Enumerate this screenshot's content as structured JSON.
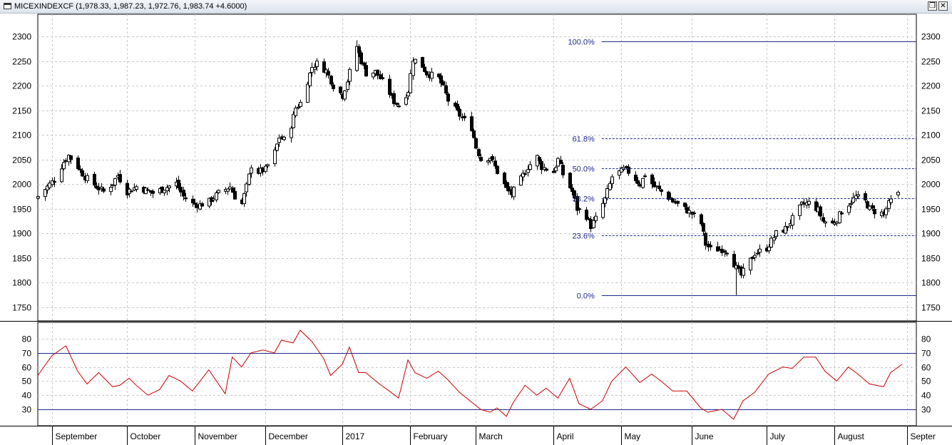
{
  "window": {
    "title": "MICEXINDEXCF (1,978.33, 1,987.23, 1,972.76, 1,983.74 +4.6000)",
    "restore_glyph": "❐",
    "close_glyph": "✕"
  },
  "colors": {
    "grid": "#c8c8c8",
    "candle_up_fill": "#ffffff",
    "candle_down_fill": "#000000",
    "candle_stroke": "#000000",
    "fib_line": "#1e2a8a",
    "rsi_line": "#cc0000",
    "rsi_levels": "#1e2a8a"
  },
  "chart_data": [
    {
      "type": "candlestick",
      "title": "MICEXINDEXCF",
      "last": {
        "open": 1978.33,
        "high": 1987.23,
        "low": 1972.76,
        "close": 1983.74,
        "change": 4.6
      },
      "x_start": "2016-08-26",
      "x_end": "2017-09-05",
      "ylim": [
        1710,
        2330
      ],
      "y_ticks": [
        1750,
        1800,
        1850,
        1900,
        1950,
        2000,
        2050,
        2100,
        2150,
        2200,
        2250,
        2300
      ],
      "grid": true,
      "x_labels": [
        {
          "label": "September",
          "date": "2016-09-01"
        },
        {
          "label": "October",
          "date": "2016-10-03"
        },
        {
          "label": "November",
          "date": "2016-11-01"
        },
        {
          "label": "December",
          "date": "2016-12-01"
        },
        {
          "label": "2017",
          "date": "2017-01-03"
        },
        {
          "label": "February",
          "date": "2017-02-01"
        },
        {
          "label": "March",
          "date": "2017-03-01"
        },
        {
          "label": "April",
          "date": "2017-04-03"
        },
        {
          "label": "May",
          "date": "2017-05-02"
        },
        {
          "label": "June",
          "date": "2017-06-01"
        },
        {
          "label": "July",
          "date": "2017-07-03"
        },
        {
          "label": "August",
          "date": "2017-08-01"
        },
        {
          "label": "Septer",
          "date": "2017-09-01"
        }
      ],
      "close_path": [
        [
          "2016-08-26",
          1975
        ],
        [
          "2016-09-02",
          2010
        ],
        [
          "2016-09-06",
          2045
        ],
        [
          "2016-09-08",
          2058
        ],
        [
          "2016-09-12",
          2035
        ],
        [
          "2016-09-15",
          2015
        ],
        [
          "2016-09-20",
          1995
        ],
        [
          "2016-09-23",
          1985
        ],
        [
          "2016-09-27",
          2002
        ],
        [
          "2016-09-29",
          2018
        ],
        [
          "2016-10-03",
          1985
        ],
        [
          "2016-10-07",
          1995
        ],
        [
          "2016-10-11",
          1988
        ],
        [
          "2016-10-14",
          1982
        ],
        [
          "2016-10-19",
          1992
        ],
        [
          "2016-10-24",
          2002
        ],
        [
          "2016-10-27",
          1975
        ],
        [
          "2016-10-31",
          1960
        ],
        [
          "2016-11-03",
          1958
        ],
        [
          "2016-11-07",
          1965
        ],
        [
          "2016-11-11",
          1982
        ],
        [
          "2016-11-16",
          1995
        ],
        [
          "2016-11-18",
          1975
        ],
        [
          "2016-11-21",
          1960
        ],
        [
          "2016-11-23",
          1995
        ],
        [
          "2016-11-25",
          2038
        ],
        [
          "2016-11-28",
          2025
        ],
        [
          "2016-12-01",
          2030
        ],
        [
          "2016-12-05",
          2065
        ],
        [
          "2016-12-07",
          2095
        ],
        [
          "2016-12-09",
          2090
        ],
        [
          "2016-12-12",
          2120
        ],
        [
          "2016-12-14",
          2155
        ],
        [
          "2016-12-16",
          2165
        ],
        [
          "2016-12-19",
          2210
        ],
        [
          "2016-12-21",
          2238
        ],
        [
          "2016-12-23",
          2245
        ],
        [
          "2016-12-27",
          2230
        ],
        [
          "2016-12-30",
          2200
        ],
        [
          "2017-01-03",
          2180
        ],
        [
          "2017-01-05",
          2210
        ],
        [
          "2017-01-09",
          2280
        ],
        [
          "2017-01-11",
          2250
        ],
        [
          "2017-01-13",
          2225
        ],
        [
          "2017-01-17",
          2228
        ],
        [
          "2017-01-19",
          2215
        ],
        [
          "2017-01-23",
          2185
        ],
        [
          "2017-01-25",
          2168
        ],
        [
          "2017-01-27",
          2160
        ],
        [
          "2017-01-31",
          2190
        ],
        [
          "2017-02-02",
          2255
        ],
        [
          "2017-02-06",
          2240
        ],
        [
          "2017-02-08",
          2225
        ],
        [
          "2017-02-13",
          2215
        ],
        [
          "2017-02-15",
          2195
        ],
        [
          "2017-02-17",
          2170
        ],
        [
          "2017-02-22",
          2140
        ],
        [
          "2017-02-27",
          2115
        ],
        [
          "2017-03-01",
          2075
        ],
        [
          "2017-03-03",
          2050
        ],
        [
          "2017-03-07",
          2055
        ],
        [
          "2017-03-10",
          2025
        ],
        [
          "2017-03-14",
          1990
        ],
        [
          "2017-03-16",
          1980
        ],
        [
          "2017-03-20",
          2010
        ],
        [
          "2017-03-23",
          2035
        ],
        [
          "2017-03-27",
          2055
        ],
        [
          "2017-03-29",
          2035
        ],
        [
          "2017-04-03",
          2025
        ],
        [
          "2017-04-05",
          2050
        ],
        [
          "2017-04-07",
          2020
        ],
        [
          "2017-04-11",
          1985
        ],
        [
          "2017-04-13",
          1950
        ],
        [
          "2017-04-17",
          1935
        ],
        [
          "2017-04-19",
          1915
        ],
        [
          "2017-04-21",
          1930
        ],
        [
          "2017-04-25",
          1970
        ],
        [
          "2017-04-28",
          2015
        ],
        [
          "2017-05-03",
          2030
        ],
        [
          "2017-05-05",
          2025
        ],
        [
          "2017-05-10",
          2000
        ],
        [
          "2017-05-12",
          2020
        ],
        [
          "2017-05-16",
          1995
        ],
        [
          "2017-05-19",
          1985
        ],
        [
          "2017-05-24",
          1965
        ],
        [
          "2017-05-29",
          1950
        ],
        [
          "2017-06-01",
          1940
        ],
        [
          "2017-06-05",
          1920
        ],
        [
          "2017-06-07",
          1878
        ],
        [
          "2017-06-09",
          1868
        ],
        [
          "2017-06-14",
          1868
        ],
        [
          "2017-06-16",
          1865
        ],
        [
          "2017-06-20",
          1830
        ],
        [
          "2017-06-22",
          1815
        ],
        [
          "2017-06-26",
          1845
        ],
        [
          "2017-06-28",
          1860
        ],
        [
          "2017-07-03",
          1870
        ],
        [
          "2017-07-05",
          1885
        ],
        [
          "2017-07-07",
          1900
        ],
        [
          "2017-07-11",
          1910
        ],
        [
          "2017-07-14",
          1930
        ],
        [
          "2017-07-18",
          1958
        ],
        [
          "2017-07-21",
          1962
        ],
        [
          "2017-07-25",
          1948
        ],
        [
          "2017-07-27",
          1925
        ],
        [
          "2017-07-31",
          1920
        ],
        [
          "2017-08-02",
          1930
        ],
        [
          "2017-08-04",
          1945
        ],
        [
          "2017-08-08",
          1965
        ],
        [
          "2017-08-10",
          1975
        ],
        [
          "2017-08-14",
          1965
        ],
        [
          "2017-08-16",
          1950
        ],
        [
          "2017-08-18",
          1945
        ],
        [
          "2017-08-22",
          1940
        ],
        [
          "2017-08-24",
          1960
        ],
        [
          "2017-08-28",
          1984
        ]
      ],
      "fibonacci": {
        "start_date": "2017-04-10",
        "end_date": "2017-09-05",
        "levels": [
          {
            "label": "100.0%",
            "value": 2290,
            "style": "solid"
          },
          {
            "label": "61.8%",
            "value": 2093,
            "style": "dashed"
          },
          {
            "label": "50.0%",
            "value": 2032,
            "style": "dashed"
          },
          {
            "label": "38.2%",
            "value": 1972,
            "style": "dashed"
          },
          {
            "label": "23.6%",
            "value": 1896,
            "style": "dashed"
          },
          {
            "label": "0.0%",
            "value": 1775,
            "style": "solid"
          }
        ]
      }
    },
    {
      "type": "line",
      "title": "",
      "ylim": [
        22,
        90
      ],
      "y_ticks": [
        30,
        40,
        50,
        60,
        70,
        80
      ],
      "levels": [
        30,
        70
      ],
      "grid": true,
      "x": [
        "2016-08-26",
        "2016-09-01",
        "2016-09-07",
        "2016-09-12",
        "2016-09-16",
        "2016-09-21",
        "2016-09-27",
        "2016-09-30",
        "2016-10-04",
        "2016-10-07",
        "2016-10-12",
        "2016-10-17",
        "2016-10-21",
        "2016-10-26",
        "2016-10-31",
        "2016-11-07",
        "2016-11-14",
        "2016-11-17",
        "2016-11-21",
        "2016-11-25",
        "2016-11-30",
        "2016-12-05",
        "2016-12-08",
        "2016-12-13",
        "2016-12-16",
        "2016-12-21",
        "2016-12-26",
        "2016-12-29",
        "2017-01-03",
        "2017-01-06",
        "2017-01-10",
        "2017-01-13",
        "2017-01-18",
        "2017-01-23",
        "2017-01-27",
        "2017-01-31",
        "2017-02-03",
        "2017-02-08",
        "2017-02-13",
        "2017-02-17",
        "2017-02-22",
        "2017-02-28",
        "2017-03-03",
        "2017-03-07",
        "2017-03-10",
        "2017-03-14",
        "2017-03-17",
        "2017-03-22",
        "2017-03-27",
        "2017-03-31",
        "2017-04-05",
        "2017-04-10",
        "2017-04-14",
        "2017-04-19",
        "2017-04-24",
        "2017-04-28",
        "2017-05-04",
        "2017-05-10",
        "2017-05-15",
        "2017-05-19",
        "2017-05-24",
        "2017-05-30",
        "2017-06-05",
        "2017-06-08",
        "2017-06-14",
        "2017-06-19",
        "2017-06-23",
        "2017-06-28",
        "2017-07-04",
        "2017-07-10",
        "2017-07-14",
        "2017-07-19",
        "2017-07-24",
        "2017-07-28",
        "2017-08-02",
        "2017-08-07",
        "2017-08-11",
        "2017-08-16",
        "2017-08-22",
        "2017-08-25",
        "2017-08-30"
      ],
      "values": [
        54,
        68,
        75,
        57,
        48,
        56,
        46,
        47,
        52,
        47,
        40,
        44,
        54,
        50,
        43,
        58,
        41,
        67,
        60,
        70,
        72,
        70,
        79,
        77,
        86,
        78,
        66,
        54,
        62,
        74,
        56,
        56,
        49,
        43,
        38,
        65,
        56,
        52,
        57,
        51,
        42,
        34,
        30,
        28,
        31,
        25,
        35,
        47,
        40,
        45,
        38,
        52,
        34,
        30,
        36,
        50,
        60,
        49,
        55,
        50,
        43,
        43,
        31,
        28,
        30,
        23,
        36,
        42,
        55,
        60,
        59,
        67,
        67,
        57,
        50,
        60,
        55,
        48,
        46,
        56,
        62
      ]
    }
  ]
}
